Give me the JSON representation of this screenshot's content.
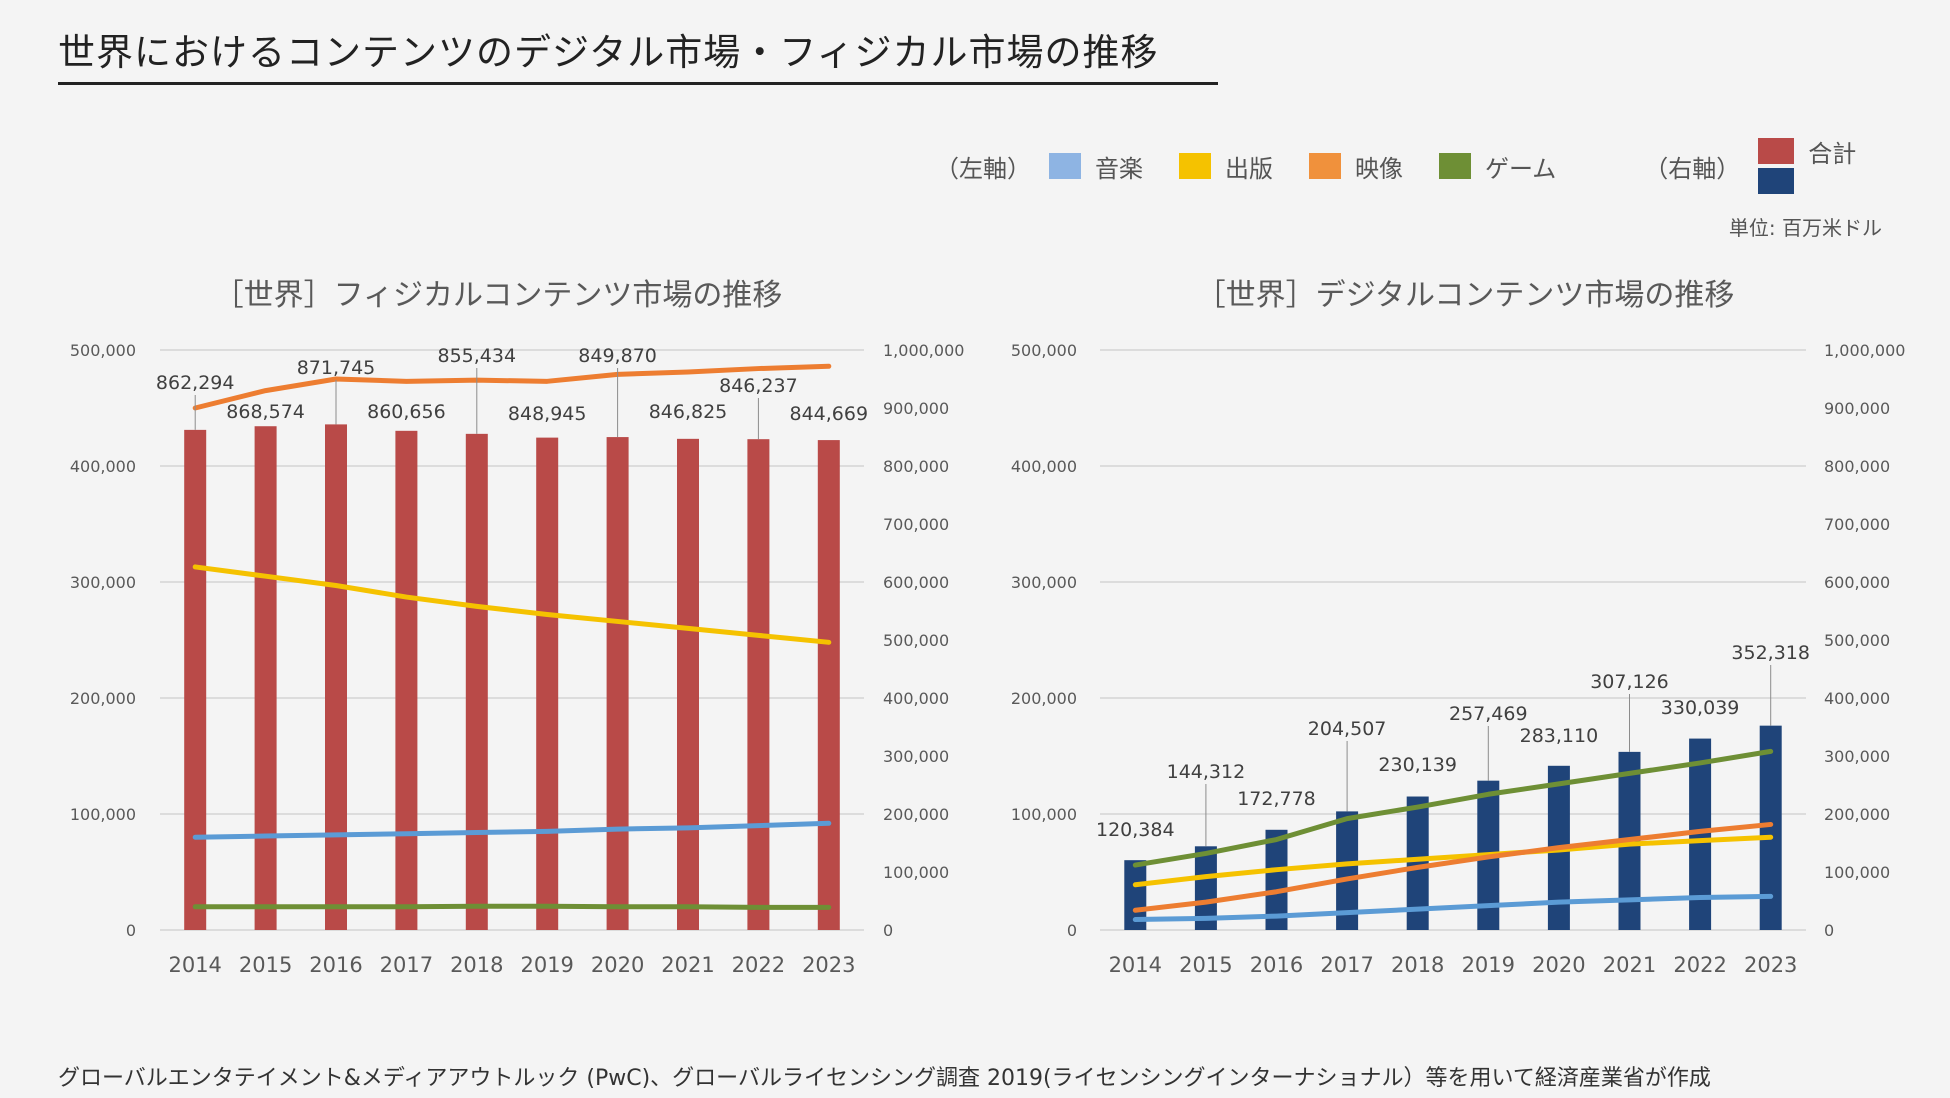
{
  "title": "世界におけるコンテンツのデジタル市場・フィジカル市場の推移",
  "legend": {
    "left_axis_label": "（左軸）",
    "right_axis_label": "（右軸）",
    "items": [
      {
        "label": "音楽",
        "color": "#8eb4e3"
      },
      {
        "label": "出版",
        "color": "#f5c200"
      },
      {
        "label": "映像",
        "color": "#f0913c"
      },
      {
        "label": "ゲーム",
        "color": "#6e8f35"
      }
    ],
    "total_label": "合計",
    "total_colors": [
      "#b94a48",
      "#1f4479"
    ]
  },
  "unit": "単位: 百万米ドル",
  "footer": "グローバルエンタテイメント&メディアアウトルック (PwC)、グローバルライセンシング調査 2019(ライセンシングインターナショナル）等を用いて経済産業省が作成",
  "chart_data": [
    {
      "type": "bar+line",
      "title": "［世界］フィジカルコンテンツ市場の推移",
      "categories": [
        "2014",
        "2015",
        "2016",
        "2017",
        "2018",
        "2019",
        "2020",
        "2021",
        "2022",
        "2023"
      ],
      "left_axis": {
        "ylim": [
          0,
          500000
        ],
        "ticks": [
          "0",
          "100,000",
          "200,000",
          "300,000",
          "400,000",
          "500,000"
        ]
      },
      "right_axis": {
        "ylim": [
          0,
          1000000
        ],
        "ticks": [
          "0",
          "100,000",
          "200,000",
          "300,000",
          "400,000",
          "500,000",
          "600,000",
          "700,000",
          "800,000",
          "900,000",
          "1,000,000"
        ]
      },
      "bars": {
        "name": "合計",
        "axis": "right",
        "color": "#b94a48",
        "values": [
          862294,
          868574,
          871745,
          860656,
          855434,
          848945,
          849870,
          846825,
          846237,
          844669
        ],
        "labels": [
          "862,294",
          "868,574",
          "871,745",
          "860,656",
          "855,434",
          "848,945",
          "849,870",
          "846,825",
          "846,237",
          "844,669"
        ]
      },
      "series": [
        {
          "name": "音楽",
          "axis": "left",
          "color": "#5b9bd5",
          "values": [
            80000,
            81000,
            82000,
            83000,
            84000,
            85000,
            87000,
            88000,
            90000,
            92000
          ]
        },
        {
          "name": "出版",
          "axis": "left",
          "color": "#f5c200",
          "values": [
            313000,
            305000,
            297000,
            287000,
            279000,
            272000,
            266000,
            260000,
            254000,
            248000
          ]
        },
        {
          "name": "映像",
          "axis": "left",
          "color": "#ed7d31",
          "values": [
            450000,
            465000,
            475000,
            473000,
            474000,
            473000,
            479000,
            481000,
            484000,
            486000
          ]
        },
        {
          "name": "ゲーム",
          "axis": "left",
          "color": "#6e8f35",
          "values": [
            20000,
            20000,
            20000,
            20000,
            20500,
            20500,
            20000,
            20000,
            19500,
            19500
          ]
        }
      ]
    },
    {
      "type": "bar+line",
      "title": "［世界］デジタルコンテンツ市場の推移",
      "categories": [
        "2014",
        "2015",
        "2016",
        "2017",
        "2018",
        "2019",
        "2020",
        "2021",
        "2022",
        "2023"
      ],
      "left_axis": {
        "ylim": [
          0,
          500000
        ],
        "ticks": [
          "0",
          "100,000",
          "200,000",
          "300,000",
          "400,000",
          "500,000"
        ]
      },
      "right_axis": {
        "ylim": [
          0,
          1000000
        ],
        "ticks": [
          "0",
          "100,000",
          "200,000",
          "300,000",
          "400,000",
          "500,000",
          "600,000",
          "700,000",
          "800,000",
          "900,000",
          "1,000,000"
        ]
      },
      "bars": {
        "name": "合計",
        "axis": "right",
        "color": "#1f4479",
        "values": [
          120384,
          144312,
          172778,
          204507,
          230139,
          257469,
          283110,
          307126,
          330039,
          352318
        ],
        "labels": [
          "120,384",
          "144,312",
          "172,778",
          "204,507",
          "230,139",
          "257,469",
          "283,110",
          "307,126",
          "330,039",
          "352,318"
        ]
      },
      "series": [
        {
          "name": "音楽",
          "axis": "left",
          "color": "#5b9bd5",
          "values": [
            9000,
            10000,
            12000,
            15000,
            18000,
            21000,
            24000,
            26000,
            28000,
            29000
          ]
        },
        {
          "name": "出版",
          "axis": "left",
          "color": "#f5c200",
          "values": [
            39000,
            46000,
            52000,
            57000,
            61000,
            65000,
            69000,
            74000,
            77000,
            80000
          ]
        },
        {
          "name": "映像",
          "axis": "left",
          "color": "#ed7d31",
          "values": [
            17000,
            24000,
            33000,
            44000,
            54000,
            63000,
            71000,
            78000,
            85000,
            91000
          ]
        },
        {
          "name": "ゲーム",
          "axis": "left",
          "color": "#6e8f35",
          "values": [
            56000,
            66000,
            78000,
            96000,
            106000,
            117000,
            126000,
            135000,
            144000,
            154000
          ]
        }
      ]
    }
  ]
}
